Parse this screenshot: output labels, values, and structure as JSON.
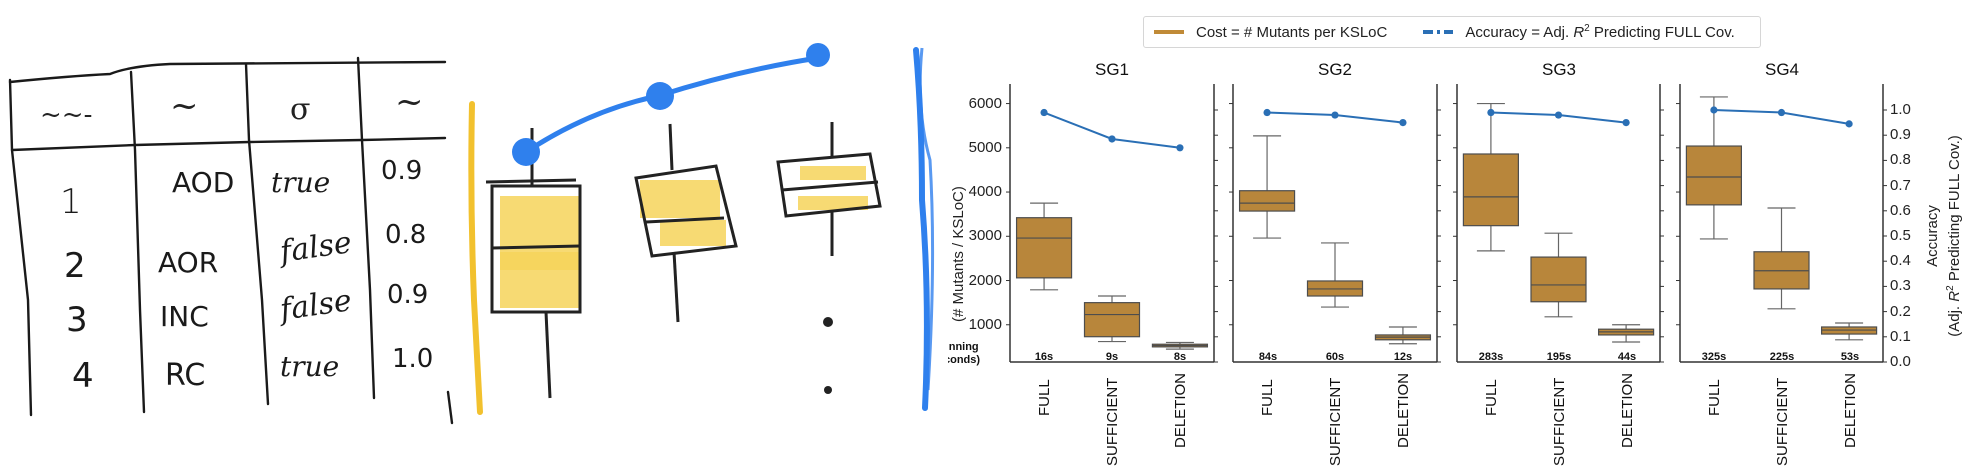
{
  "sketch_table": {
    "header_squiggles": [
      "~~-",
      "~",
      "σ",
      "~"
    ],
    "rows": [
      {
        "id": "1",
        "op": "AOD",
        "flag": "true",
        "score": "0.9"
      },
      {
        "id": "2",
        "op": "AOR",
        "flag": "false",
        "score": "0.8"
      },
      {
        "id": "3",
        "op": "INC",
        "flag": "false",
        "score": "0.9"
      },
      {
        "id": "4",
        "op": "RC",
        "flag": "true",
        "score": "1.0"
      }
    ]
  },
  "sketch_chart": {
    "description": "hand-drawn box plot sketch with accuracy line",
    "colors": {
      "box_fill": "#f6cf4a",
      "line": "#2f80ed",
      "axis_left": "#f2c12e",
      "axis_right": "#2f80ed"
    }
  },
  "legend": {
    "cost_label": "Cost = # Mutants per KSLoC",
    "accuracy_label_prefix": "Accuracy = Adj. ",
    "accuracy_label_r": "R",
    "accuracy_label_sup": "2",
    "accuracy_label_suffix": " Predicting FULL Cov."
  },
  "axes": {
    "left_label": "(# Mutants / KSLoC)",
    "left_partial_label_line1": "unning",
    "left_partial_label_line2": "conds)",
    "right_label_line1": "Accuracy",
    "right_label_line2_prefix": "(Adj. ",
    "right_label_line2_r": "R",
    "right_label_line2_sup": "2",
    "right_label_line2_suffix": " Predicting FULL Cov.)",
    "left_ticks": [
      "1000",
      "2000",
      "3000",
      "4000",
      "5000",
      "6000"
    ],
    "right_ticks": [
      "0.0",
      "0.1",
      "0.2",
      "0.3",
      "0.4",
      "0.5",
      "0.6",
      "0.7",
      "0.8",
      "0.9",
      "1.0"
    ]
  },
  "colors": {
    "box_fill": "#b8863b",
    "box_edge": "#4d4d4d",
    "accuracy_line": "#2a6fb5",
    "axis": "#333333"
  },
  "chart_data": {
    "type": "box+line",
    "title": "",
    "legend": [
      "Cost = # Mutants per KSLoC",
      "Accuracy = Adj. R^2 Predicting FULL Cov."
    ],
    "legend_position": "top",
    "xlabel": "",
    "ylabel_left": "(# Mutants / KSLoC)",
    "ylabel_right": "Accuracy (Adj. R^2 Predicting FULL Cov.)",
    "ylim_left": [
      160,
      6400
    ],
    "ylim_right": [
      0.0,
      1.1
    ],
    "grid": false,
    "categories": [
      "FULL",
      "SUFFICIENT",
      "DELETION"
    ],
    "panels": [
      {
        "title": "SG1",
        "boxes": [
          {
            "cat": "FULL",
            "whislo": 1790,
            "q1": 2060,
            "med": 2960,
            "q3": 3420,
            "whishi": 3750,
            "time": "16s"
          },
          {
            "cat": "SUFFICIENT",
            "whislo": 620,
            "q1": 730,
            "med": 1230,
            "q3": 1500,
            "whishi": 1650,
            "time": "9s"
          },
          {
            "cat": "DELETION",
            "whislo": 450,
            "q1": 500,
            "med": 530,
            "q3": 560,
            "whishi": 600,
            "time": "8s"
          }
        ],
        "accuracy": [
          0.99,
          0.885,
          0.85
        ]
      },
      {
        "title": "SG2",
        "boxes": [
          {
            "cat": "FULL",
            "whislo": 2960,
            "q1": 3570,
            "med": 3750,
            "q3": 4030,
            "whishi": 5270,
            "time": "84s"
          },
          {
            "cat": "SUFFICIENT",
            "whislo": 1400,
            "q1": 1650,
            "med": 1810,
            "q3": 1990,
            "whishi": 2850,
            "time": "60s"
          },
          {
            "cat": "DELETION",
            "whislo": 570,
            "q1": 660,
            "med": 720,
            "q3": 770,
            "whishi": 950,
            "time": "12s"
          }
        ],
        "accuracy": [
          0.99,
          0.98,
          0.95
        ]
      },
      {
        "title": "SG3",
        "boxes": [
          {
            "cat": "FULL",
            "whislo": 2670,
            "q1": 3240,
            "med": 3890,
            "q3": 4860,
            "whishi": 6000,
            "time": "283s"
          },
          {
            "cat": "SUFFICIENT",
            "whislo": 1180,
            "q1": 1520,
            "med": 1900,
            "q3": 2530,
            "whishi": 3070,
            "time": "195s"
          },
          {
            "cat": "DELETION",
            "whislo": 610,
            "q1": 770,
            "med": 840,
            "q3": 900,
            "whishi": 1000,
            "time": "44s"
          }
        ],
        "accuracy": [
          0.99,
          0.98,
          0.95
        ]
      },
      {
        "title": "SG4",
        "boxes": [
          {
            "cat": "FULL",
            "whislo": 2940,
            "q1": 3710,
            "med": 4340,
            "q3": 5040,
            "whishi": 6150,
            "time": "325s"
          },
          {
            "cat": "SUFFICIENT",
            "whislo": 1360,
            "q1": 1810,
            "med": 2220,
            "q3": 2650,
            "whishi": 3640,
            "time": "225s"
          },
          {
            "cat": "DELETION",
            "whislo": 660,
            "q1": 790,
            "med": 880,
            "q3": 950,
            "whishi": 1040,
            "time": "53s"
          }
        ],
        "accuracy": [
          1.0,
          0.99,
          0.945
        ]
      }
    ]
  }
}
